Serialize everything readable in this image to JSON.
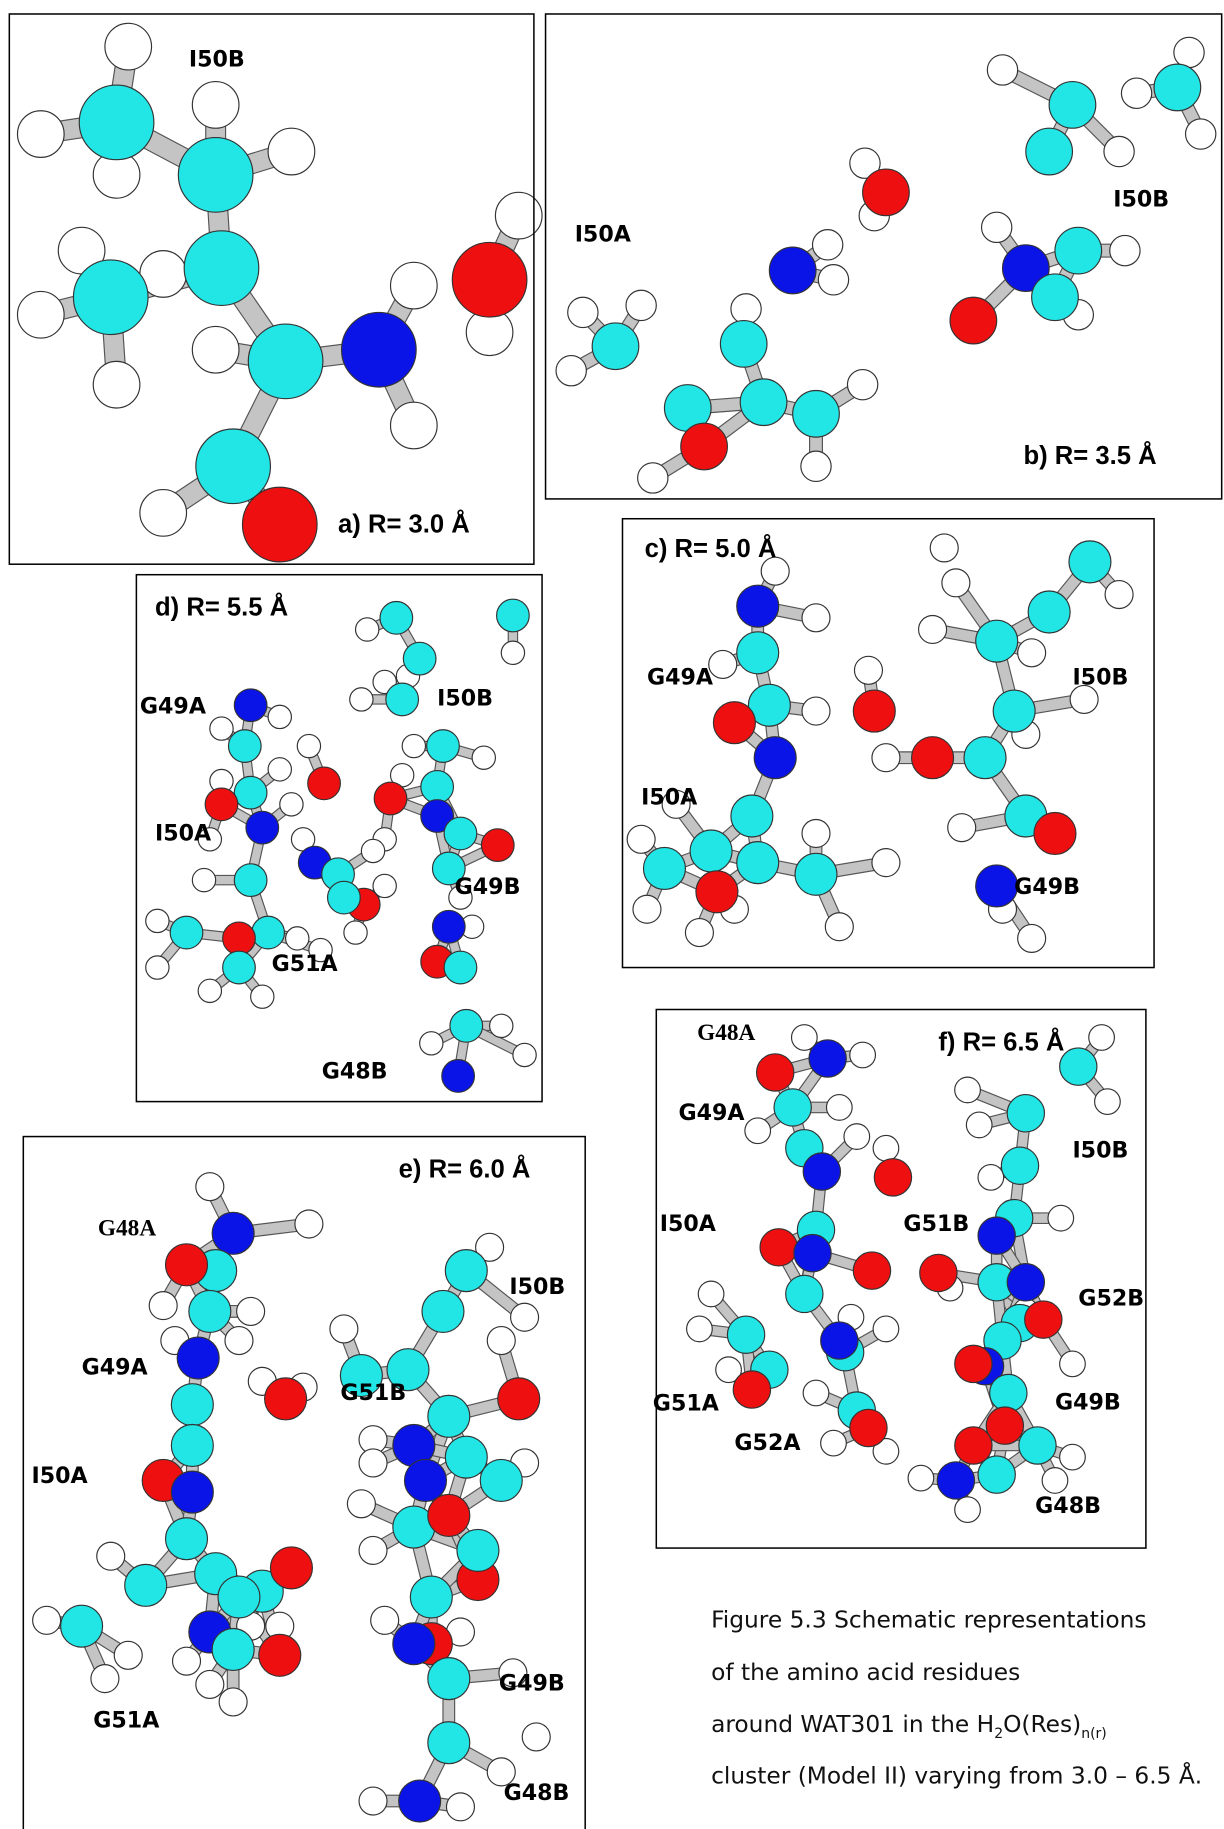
{
  "figure": {
    "panels": [
      {
        "label": "a) R= 3.0 Å",
        "residues": [
          "I50B"
        ]
      },
      {
        "label": "b) R= 3.5 Å",
        "residues": [
          "I50A",
          "I50B"
        ]
      },
      {
        "label": "c) R= 5.0 Å",
        "residues": [
          "G49A",
          "I50B",
          "I50A",
          "G49B"
        ]
      },
      {
        "label": "d) R= 5.5 Å",
        "residues": [
          "G49A",
          "I50B",
          "I50A",
          "G49B",
          "G51A",
          "G48B"
        ]
      },
      {
        "label": "e) R= 6.0 Å",
        "residues": [
          "G48A",
          "I50B",
          "G49A",
          "G51B",
          "I50A",
          "G49B",
          "G51A",
          "G48B"
        ]
      },
      {
        "label": "f) R= 6.5 Å",
        "residues": [
          "G48A",
          "G49A",
          "I50B",
          "I50A",
          "G51B",
          "G52B",
          "G51A",
          "G49B",
          "G52A",
          "G48B"
        ]
      }
    ]
  },
  "caption": {
    "number": "Figure 5.3",
    "lines": [
      " Schematic representations",
      "of the amino acid residues",
      "around WAT301 in the H",
      "cluster (Model II) varying from 3.0 – 6.5 Å."
    ],
    "formula": {
      "sub1": "2",
      "middle": "O(Res)",
      "sub2": "n(r)"
    }
  }
}
